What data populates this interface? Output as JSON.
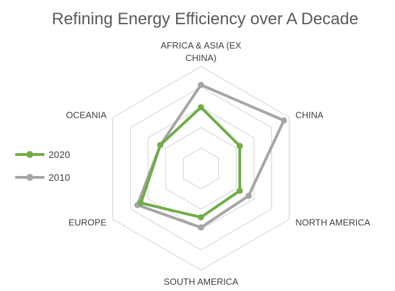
{
  "chart_data": {
    "type": "radar",
    "title": "Refining Energy Efficiency over A Decade",
    "categories": [
      "AFRICA & ASIA (EX CHINA)",
      "CHINA",
      "NORTH AMERICA",
      "SOUTH AMERICA",
      "EUROPE",
      "OCEANIA"
    ],
    "category_lines": [
      [
        "AFRICA & ASIA (EX",
        "CHINA)"
      ],
      [
        "CHINA"
      ],
      [
        "NORTH AMERICA"
      ],
      [
        "SOUTH AMERICA"
      ],
      [
        "EUROPE"
      ],
      [
        "OCEANIA"
      ]
    ],
    "rmax": 5,
    "rings": 5,
    "series": [
      {
        "name": "2020",
        "color": "#70AD47",
        "values": [
          3.0,
          2.2,
          2.2,
          2.4,
          3.4,
          2.3
        ]
      },
      {
        "name": "2010",
        "color": "#A5A5A5",
        "values": [
          4.1,
          4.7,
          2.7,
          2.9,
          3.6,
          2.3
        ]
      }
    ],
    "legend_position": "left",
    "grid": true
  }
}
